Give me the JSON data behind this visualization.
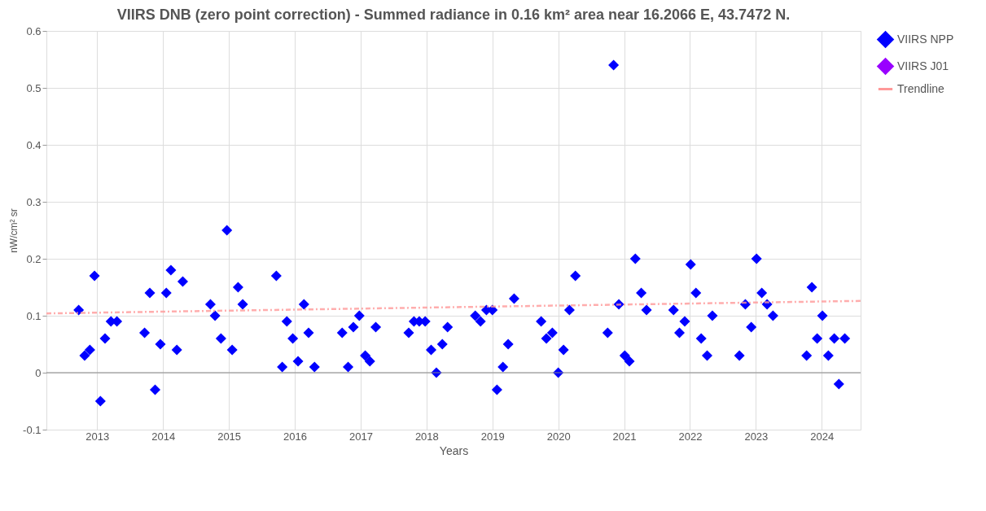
{
  "chart_data": {
    "type": "scatter",
    "title": "VIIRS DNB (zero point correction) - Summed radiance in 0.16 km² area near 16.2066 E, 43.7472 N.",
    "xlabel": "Years",
    "ylabel": "nW/cm² sr",
    "xlim": [
      2012.23,
      2024.59
    ],
    "xticks": [
      2013,
      2014,
      2015,
      2016,
      2017,
      2018,
      2019,
      2020,
      2021,
      2022,
      2023,
      2024
    ],
    "ylim": [
      -0.1,
      0.6
    ],
    "yticks": [
      -0.1,
      0,
      0.1,
      0.2,
      0.3,
      0.4,
      0.5,
      0.6
    ],
    "grid": true,
    "legend": "top right",
    "series": [
      {
        "name": "VIIRS NPP",
        "color": "#0000ff",
        "marker": "diamond",
        "x": [
          2012.72,
          2012.81,
          2012.89,
          2012.96,
          2013.05,
          2013.12,
          2013.21,
          2013.3,
          2013.72,
          2013.8,
          2013.88,
          2013.96,
          2014.05,
          2014.12,
          2014.21,
          2014.3,
          2014.72,
          2014.79,
          2014.88,
          2014.97,
          2015.05,
          2015.14,
          2015.21,
          2015.72,
          2015.81,
          2015.88,
          2015.97,
          2016.05,
          2016.14,
          2016.21,
          2016.3,
          2016.72,
          2016.81,
          2016.89,
          2016.98,
          2017.07,
          2017.14,
          2017.23,
          2017.73,
          2017.81,
          2017.89,
          2017.98,
          2018.07,
          2018.15,
          2018.24,
          2018.32,
          2018.74,
          2018.82,
          2018.91,
          2019.0,
          2019.07,
          2019.16,
          2019.24,
          2019.33,
          2019.74,
          2019.82,
          2019.91,
          2020.0,
          2020.08,
          2020.17,
          2020.26,
          2020.75,
          2020.84,
          2020.92,
          2021.01,
          2021.08,
          2021.17,
          2021.26,
          2021.34,
          2021.75,
          2021.84,
          2021.92,
          2022.01,
          2022.09,
          2022.17,
          2022.26,
          2022.34,
          2022.75,
          2022.84,
          2022.93,
          2023.01,
          2023.09,
          2023.17,
          2023.26,
          2023.77,
          2023.85,
          2023.93,
          2024.01,
          2024.1,
          2024.19,
          2024.26,
          2024.35
        ],
        "values": [
          0.11,
          0.03,
          0.04,
          0.17,
          -0.05,
          0.06,
          0.09,
          0.09,
          0.07,
          0.14,
          -0.03,
          0.05,
          0.14,
          0.18,
          0.04,
          0.16,
          0.12,
          0.1,
          0.06,
          0.25,
          0.04,
          0.15,
          0.12,
          0.17,
          0.01,
          0.09,
          0.06,
          0.02,
          0.12,
          0.07,
          0.01,
          0.07,
          0.01,
          0.08,
          0.1,
          0.03,
          0.02,
          0.08,
          0.07,
          0.09,
          0.09,
          0.09,
          0.04,
          0.0,
          0.05,
          0.08,
          0.1,
          0.09,
          0.11,
          0.11,
          -0.03,
          0.01,
          0.05,
          0.13,
          0.09,
          0.06,
          0.07,
          0.0,
          0.04,
          0.11,
          0.17,
          0.07,
          0.54,
          0.12,
          0.03,
          0.02,
          0.2,
          0.14,
          0.11,
          0.11,
          0.07,
          0.09,
          0.19,
          0.14,
          0.06,
          0.03,
          0.1,
          0.03,
          0.12,
          0.08,
          0.2,
          0.14,
          0.12,
          0.1,
          0.03,
          0.15,
          0.06,
          0.1,
          0.03,
          0.06,
          -0.02,
          0.06
        ]
      },
      {
        "name": "VIIRS J01",
        "color": "#9900ff",
        "marker": "diamond"
      },
      {
        "name": "Trendline",
        "type": "line",
        "color": "#ff9999",
        "line_style": "dashed",
        "x": [
          2012.23,
          2024.59
        ],
        "values": [
          0.104,
          0.126
        ]
      }
    ]
  }
}
